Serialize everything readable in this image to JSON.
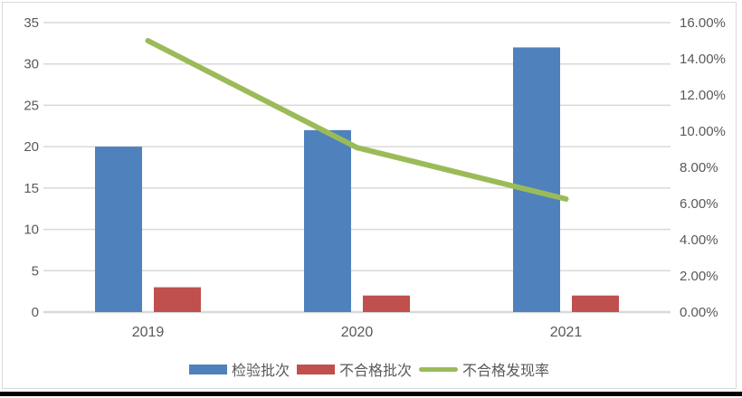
{
  "chart_data": {
    "type": "combo",
    "title": "",
    "categories": [
      "2019",
      "2020",
      "2021"
    ],
    "series": [
      {
        "name": "检验批次",
        "type": "bar",
        "axis": "left",
        "color": "#4F81BD",
        "values": [
          20,
          22,
          32
        ]
      },
      {
        "name": "不合格批次",
        "type": "bar",
        "axis": "left",
        "color": "#C0504D",
        "values": [
          3,
          2,
          2
        ]
      },
      {
        "name": "不合格发现率",
        "type": "line",
        "axis": "right",
        "color": "#9BBB59",
        "unit": "%",
        "values": [
          15.0,
          9.09,
          6.25
        ]
      }
    ],
    "left_axis": {
      "min": 0,
      "max": 35,
      "step": 5,
      "tick_labels": [
        "0",
        "5",
        "10",
        "15",
        "20",
        "25",
        "30",
        "35"
      ]
    },
    "right_axis": {
      "min": 0,
      "max": 16,
      "step": 2,
      "tick_labels": [
        "0.00%",
        "2.00%",
        "4.00%",
        "6.00%",
        "8.00%",
        "10.00%",
        "12.00%",
        "14.00%",
        "16.00%"
      ]
    },
    "legend": {
      "position": "bottom",
      "entries": [
        "检验批次",
        "不合格批次",
        "不合格发现率"
      ]
    },
    "grid": true,
    "styles": {
      "gridline_color": "#D9D9D9",
      "axis_text_color": "#595959",
      "background": "#FFFFFF",
      "frame_border_color": "#D9D9D9",
      "bottom_rule_color": "#000000"
    }
  }
}
